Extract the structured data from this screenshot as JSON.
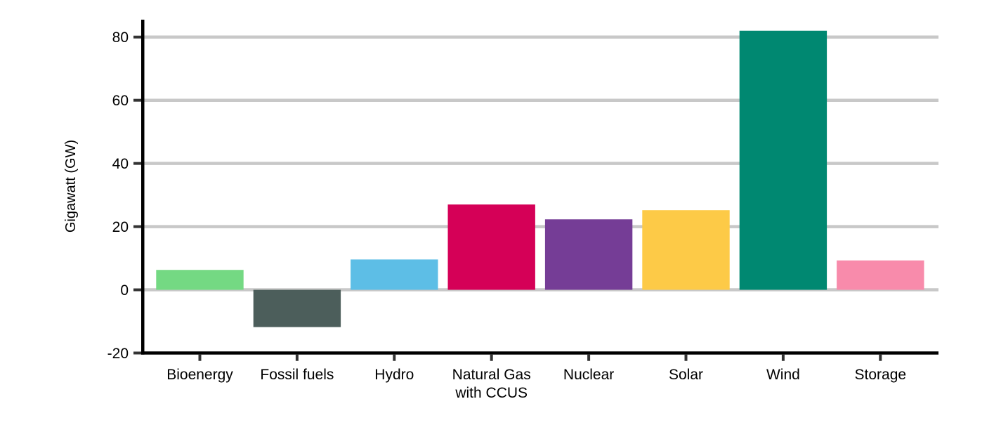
{
  "chart_data": {
    "type": "bar",
    "title": "",
    "categories": [
      "Bioenergy",
      "Fossil fuels",
      "Hydro",
      "Natural Gas\nwith CCUS",
      "Nuclear",
      "Solar",
      "Wind",
      "Storage"
    ],
    "values": [
      6.3,
      -11.8,
      9.6,
      27,
      22.3,
      25.2,
      82,
      9.3
    ],
    "bar_colors": [
      "#74D983",
      "#4C5E5B",
      "#5DBEE6",
      "#D50057",
      "#753D96",
      "#FDCA47",
      "#008871",
      "#F88BAB"
    ],
    "xlabel": "",
    "ylabel": "Gigawatt (GW)",
    "ylim": [
      -20,
      85.5
    ],
    "yticks": [
      -20,
      0,
      20,
      40,
      60,
      80
    ],
    "gridline_values": [
      0,
      20,
      40,
      60,
      80
    ],
    "grid_on": true,
    "legend_position": "none",
    "grid_color": "#C8C8C8",
    "axis_color": "#000000",
    "tick_color": "#333333",
    "text_color": "#000000",
    "background_color": "#FFFFFF"
  }
}
